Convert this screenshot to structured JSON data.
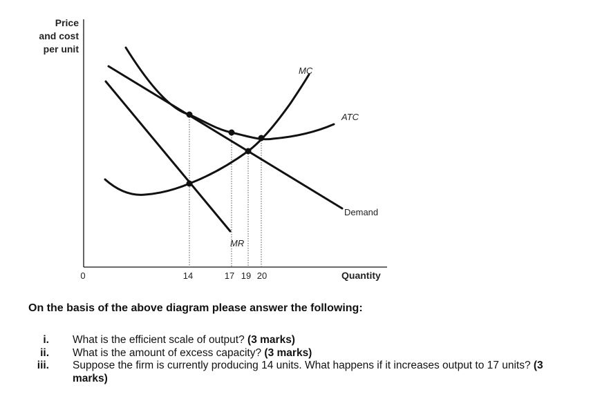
{
  "diagram": {
    "y_axis_title": [
      "Price",
      "and cost",
      "per unit"
    ],
    "x_axis_title": "Quantity",
    "origin_label": "0",
    "x_ticks": [
      "14",
      "17",
      "19",
      "20"
    ],
    "curves": {
      "mc": "MC",
      "atc": "ATC",
      "demand": "Demand",
      "mr": "MR"
    }
  },
  "prompt": "On the basis of the above diagram please answer the following:",
  "questions": [
    {
      "num": "i.",
      "text": "What is the efficient scale of output?",
      "marks": "(3 marks)"
    },
    {
      "num": "ii.",
      "text": "What is the amount of excess capacity?",
      "marks": "(3 marks)"
    },
    {
      "num": "iii.",
      "text": "Suppose the firm is currently producing 14 units. What happens if it increases output to 17 units?",
      "marks": "(3 marks)"
    }
  ]
}
